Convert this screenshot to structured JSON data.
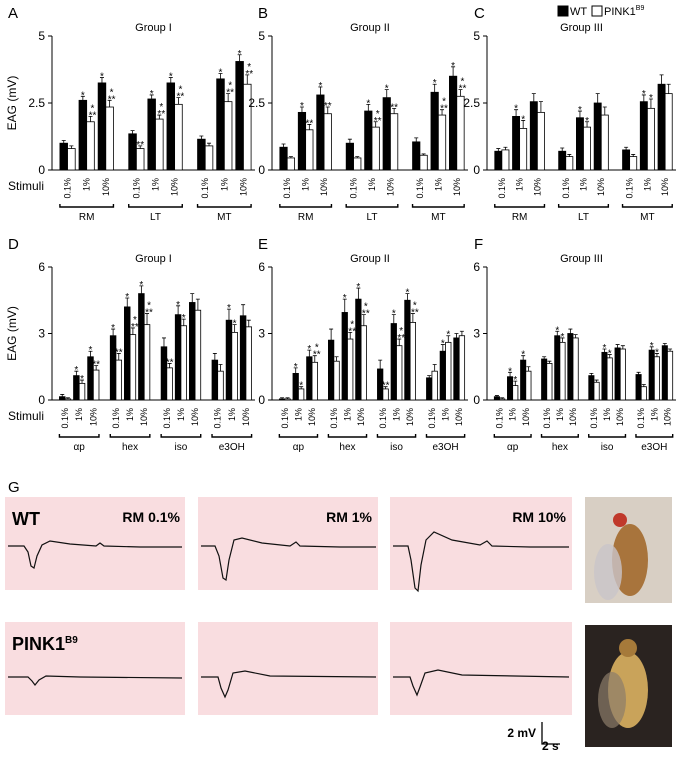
{
  "chart_data": [
    {
      "panel": "A",
      "type": "bar",
      "title": "Group I",
      "y_label": "EAG (mV)",
      "stimuli_label": "Stimuli",
      "categories": [
        "0.1%",
        "1%",
        "10%",
        "0.1%",
        "1%",
        "10%",
        "0.1%",
        "1%",
        "10%"
      ],
      "groups": [
        "RM",
        "LT",
        "MT"
      ],
      "ylim": [
        0,
        5
      ],
      "yticks": [
        0,
        2.5,
        5
      ],
      "series": [
        {
          "color": "#000000",
          "values": [
            1.0,
            2.6,
            3.25,
            1.35,
            2.65,
            3.25,
            1.15,
            3.4,
            4.05
          ],
          "errors": [
            0.1,
            0.15,
            0.2,
            0.12,
            0.15,
            0.2,
            0.12,
            0.2,
            0.25
          ],
          "significance": [
            null,
            "*",
            "*",
            null,
            "*",
            "*",
            null,
            "*",
            "*"
          ]
        },
        {
          "color": "#ffffff",
          "values": [
            0.8,
            1.8,
            2.35,
            0.8,
            1.9,
            2.45,
            0.9,
            2.55,
            3.2
          ],
          "errors": [
            0.1,
            0.2,
            0.25,
            0.1,
            0.15,
            0.25,
            0.1,
            0.3,
            0.35
          ],
          "significance": [
            null,
            [
              "*",
              "**"
            ],
            [
              "*",
              "**"
            ],
            "**",
            [
              "*",
              "**"
            ],
            [
              "*",
              "**"
            ],
            null,
            [
              "*",
              "**"
            ],
            [
              "*",
              "**"
            ]
          ]
        }
      ]
    },
    {
      "panel": "B",
      "type": "bar",
      "title": "Group II",
      "categories": [
        "0.1%",
        "1%",
        "10%",
        "0.1%",
        "1%",
        "10%",
        "0.1%",
        "1%",
        "10%"
      ],
      "groups": [
        "RM",
        "LT",
        "MT"
      ],
      "ylim": [
        0,
        5
      ],
      "yticks": [
        0,
        2.5,
        5
      ],
      "series": [
        {
          "color": "#000000",
          "values": [
            0.85,
            2.15,
            2.8,
            1.0,
            2.2,
            2.7,
            1.05,
            2.9,
            3.5
          ],
          "errors": [
            0.12,
            0.2,
            0.3,
            0.15,
            0.25,
            0.3,
            0.15,
            0.3,
            0.35
          ],
          "significance": [
            null,
            "*",
            "*",
            null,
            "*",
            "*",
            null,
            "*",
            "*"
          ]
        },
        {
          "color": "#ffffff",
          "values": [
            0.45,
            1.5,
            2.1,
            0.45,
            1.6,
            2.1,
            0.55,
            2.05,
            2.75
          ],
          "errors": [
            0.05,
            0.2,
            0.25,
            0.05,
            0.2,
            0.2,
            0.05,
            0.2,
            0.25
          ],
          "significance": [
            null,
            "**",
            "**",
            null,
            [
              "*",
              "**"
            ],
            "**",
            null,
            [
              "*",
              "**"
            ],
            [
              "*",
              "**"
            ]
          ]
        }
      ]
    },
    {
      "panel": "C",
      "type": "bar",
      "title": "Group III",
      "categories": [
        "0.1%",
        "1%",
        "10%",
        "0.1%",
        "1%",
        "10%",
        "0.1%",
        "1%",
        "10%"
      ],
      "groups": [
        "RM",
        "LT",
        "MT"
      ],
      "ylim": [
        0,
        5
      ],
      "yticks": [
        0,
        2.5,
        5
      ],
      "series": [
        {
          "name": "WT",
          "color": "#000000",
          "values": [
            0.7,
            2.0,
            2.55,
            0.7,
            1.95,
            2.5,
            0.75,
            2.55,
            3.2
          ],
          "errors": [
            0.1,
            0.25,
            0.3,
            0.12,
            0.25,
            0.35,
            0.1,
            0.25,
            0.35
          ],
          "significance": [
            null,
            "*",
            null,
            null,
            "*",
            null,
            null,
            "*",
            null
          ]
        },
        {
          "name": "PINK1",
          "superscript": "B9",
          "color": "#ffffff",
          "values": [
            0.75,
            1.55,
            2.15,
            0.5,
            1.6,
            2.05,
            0.5,
            2.3,
            2.85
          ],
          "errors": [
            0.1,
            0.3,
            0.4,
            0.08,
            0.2,
            0.3,
            0.08,
            0.35,
            0.35
          ],
          "significance": [
            null,
            "*",
            null,
            null,
            "*",
            null,
            null,
            "*",
            null
          ]
        }
      ]
    },
    {
      "panel": "D",
      "type": "bar",
      "title": "Group I",
      "y_label": "EAG (mV)",
      "stimuli_label": "Stimuli",
      "categories": [
        "0.1%",
        "1%",
        "10%",
        "0.1%",
        "1%",
        "10%",
        "0.1%",
        "1%",
        "10%",
        "0.1%",
        "1%",
        "10%"
      ],
      "groups": [
        "αp",
        "hex",
        "iso",
        "e3OH"
      ],
      "ylim": [
        0,
        6
      ],
      "yticks": [
        0,
        3,
        6
      ],
      "series": [
        {
          "color": "#000000",
          "values": [
            0.15,
            1.1,
            1.95,
            2.9,
            4.2,
            4.8,
            2.4,
            3.85,
            4.4,
            1.8,
            3.6,
            3.8
          ],
          "errors": [
            0.1,
            0.2,
            0.25,
            0.3,
            0.4,
            0.35,
            0.4,
            0.4,
            0.4,
            0.3,
            0.5,
            0.5
          ],
          "significance": [
            null,
            "*",
            "*",
            "*",
            "*",
            "*",
            null,
            "*",
            null,
            null,
            "*",
            null
          ]
        },
        {
          "color": "#ffffff",
          "values": [
            0.05,
            0.75,
            1.35,
            1.8,
            2.95,
            3.4,
            1.45,
            3.35,
            4.05,
            1.3,
            3.05,
            3.3
          ],
          "errors": [
            0.05,
            0.15,
            0.2,
            0.3,
            0.3,
            0.5,
            0.2,
            0.3,
            0.5,
            0.3,
            0.35,
            0.3
          ],
          "significance": [
            null,
            "*",
            "**",
            "**",
            [
              "*",
              "**"
            ],
            [
              "*",
              "**"
            ],
            "**",
            "*",
            null,
            null,
            "*",
            null
          ]
        }
      ]
    },
    {
      "panel": "E",
      "type": "bar",
      "title": "Group II",
      "categories": [
        "0.1%",
        "1%",
        "10%",
        "0.1%",
        "1%",
        "10%",
        "0.1%",
        "1%",
        "10%",
        "0.1%",
        "1%",
        "10%"
      ],
      "groups": [
        "αp",
        "hex",
        "iso",
        "e3OH"
      ],
      "ylim": [
        0,
        6
      ],
      "yticks": [
        0,
        3,
        6
      ],
      "series": [
        {
          "color": "#000000",
          "values": [
            0.05,
            1.2,
            1.95,
            2.7,
            3.95,
            4.55,
            1.4,
            3.45,
            4.5,
            1.0,
            2.2,
            2.8
          ],
          "errors": [
            0.05,
            0.25,
            0.3,
            0.5,
            0.6,
            0.5,
            0.4,
            0.4,
            0.3,
            0.1,
            0.3,
            0.2
          ],
          "significance": [
            null,
            "*",
            "*",
            null,
            "*",
            "*",
            null,
            "*",
            "*",
            null,
            "*",
            null
          ]
        },
        {
          "color": "#ffffff",
          "values": [
            0.05,
            0.5,
            1.7,
            1.75,
            2.75,
            3.35,
            0.5,
            2.45,
            3.5,
            1.3,
            2.6,
            2.9
          ],
          "errors": [
            0.05,
            0.1,
            0.3,
            0.2,
            0.3,
            0.5,
            0.1,
            0.3,
            0.4,
            0.3,
            0.3,
            0.2
          ],
          "significance": [
            null,
            "*",
            [
              "*",
              "**"
            ],
            null,
            [
              "*",
              "**"
            ],
            [
              "*",
              "**"
            ],
            "**",
            [
              "*",
              "**"
            ],
            [
              "*",
              "**"
            ],
            null,
            "*",
            null
          ]
        }
      ]
    },
    {
      "panel": "F",
      "type": "bar",
      "title": "Group III",
      "categories": [
        "0.1%",
        "1%",
        "10%",
        "0.1%",
        "1%",
        "10%",
        "0.1%",
        "1%",
        "10%",
        "0.1%",
        "1%",
        "10%"
      ],
      "groups": [
        "αp",
        "hex",
        "iso",
        "e3OH"
      ],
      "ylim": [
        0,
        6
      ],
      "yticks": [
        0,
        3,
        6
      ],
      "series": [
        {
          "color": "#000000",
          "values": [
            0.15,
            1.05,
            1.8,
            1.85,
            2.9,
            3.0,
            1.1,
            2.15,
            2.35,
            1.15,
            2.25,
            2.45
          ],
          "errors": [
            0.05,
            0.2,
            0.2,
            0.1,
            0.2,
            0.2,
            0.1,
            0.15,
            0.15,
            0.1,
            0.15,
            0.1
          ],
          "significance": [
            null,
            "*",
            "*",
            null,
            "*",
            null,
            null,
            "*",
            null,
            null,
            "*",
            null
          ]
        },
        {
          "color": "#ffffff",
          "values": [
            0.05,
            0.65,
            1.3,
            1.65,
            2.6,
            2.8,
            0.8,
            1.9,
            2.3,
            0.6,
            1.95,
            2.2
          ],
          "errors": [
            0.05,
            0.2,
            0.2,
            0.1,
            0.2,
            0.15,
            0.1,
            0.15,
            0.15,
            0.1,
            0.15,
            0.1
          ],
          "significance": [
            null,
            "*",
            null,
            null,
            "*",
            null,
            null,
            "*",
            null,
            null,
            "*",
            null
          ]
        }
      ]
    }
  ],
  "panel_g": {
    "panel": "G",
    "rows": [
      {
        "label": "WT"
      },
      {
        "label": "PINK1",
        "superscript": "B9"
      }
    ],
    "stimuli": [
      "RM 0.1%",
      "RM 1%",
      "RM 10%"
    ],
    "scale": {
      "y": "2 mV",
      "x": "2 s"
    }
  }
}
